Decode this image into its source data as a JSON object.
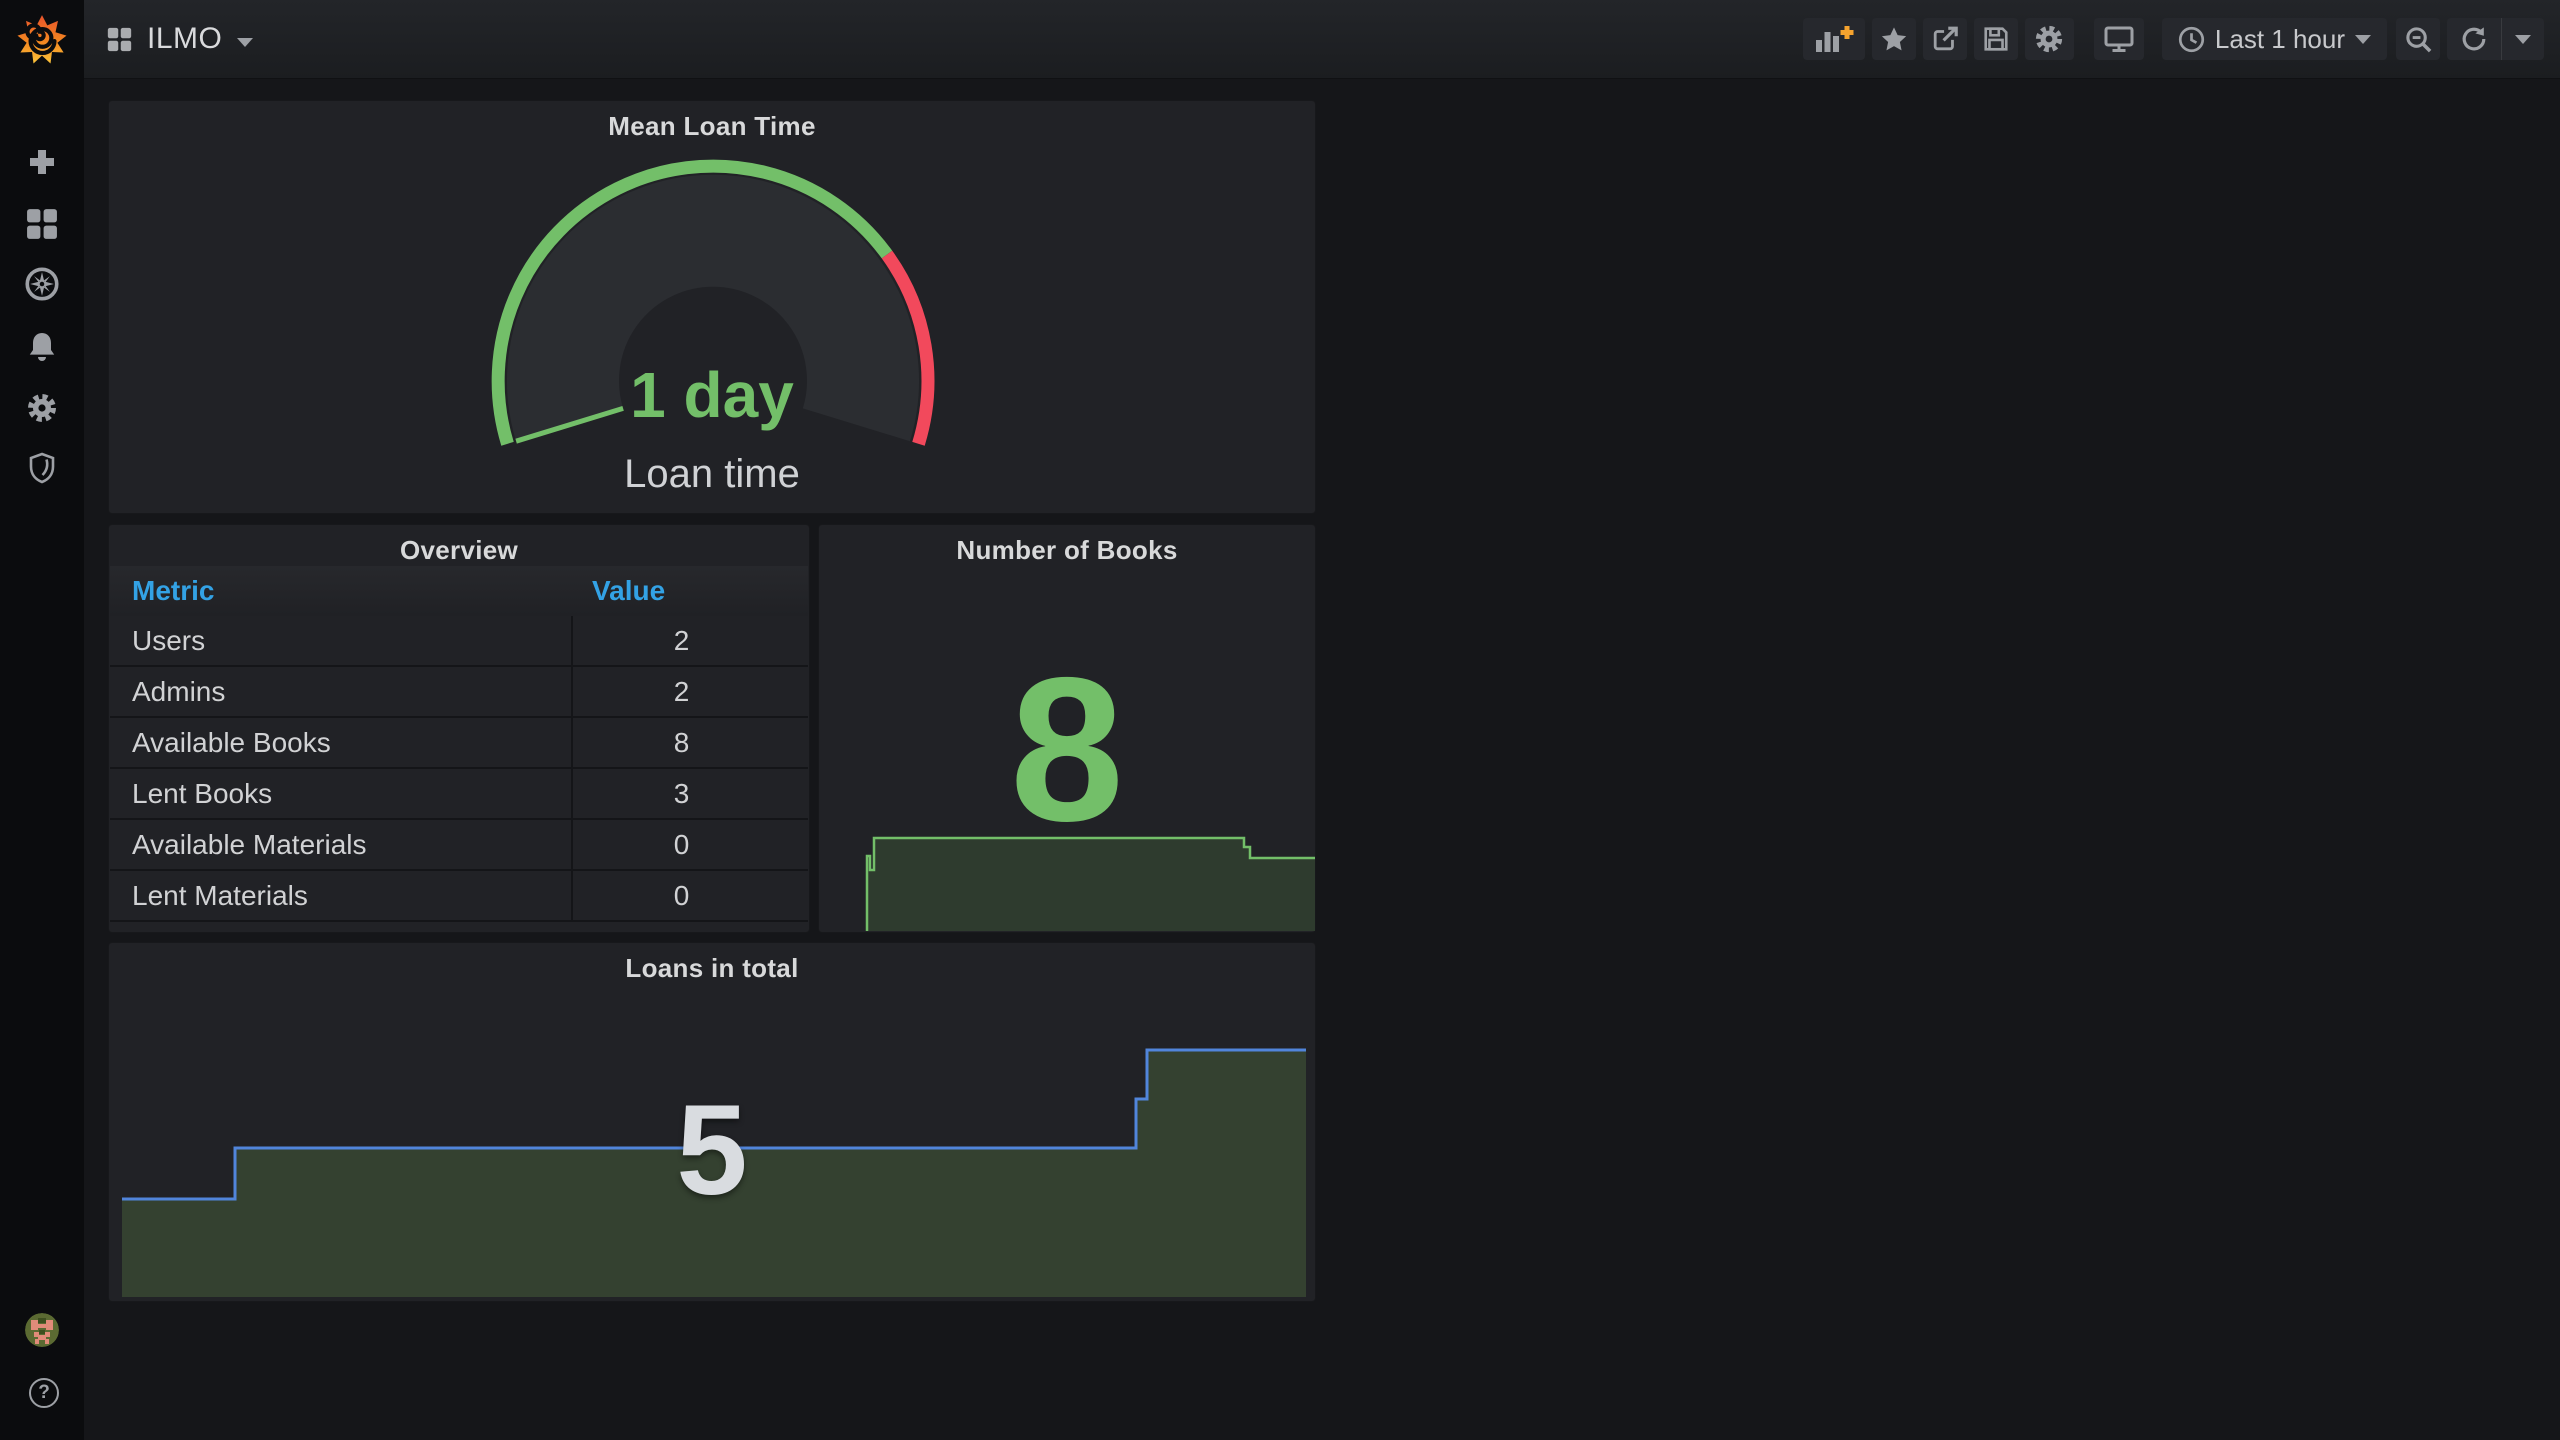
{
  "colors": {
    "page_bg": "#151619",
    "panel_bg": "#212226",
    "sidebar_bg": "#0b0c0e",
    "green": "#73BF69",
    "red": "#F2495C",
    "table_header_blue": "#33A2E5",
    "loans_line_blue": "#5185DB"
  },
  "sidebar": {
    "icons": [
      "grafana-logo",
      "create",
      "dashboards",
      "explore",
      "alerting",
      "configuration",
      "server-admin"
    ],
    "help_glyph": "?"
  },
  "navbar": {
    "title": "ILMO",
    "toolbar": {
      "icons": [
        "add-panel",
        "star",
        "share",
        "save",
        "dashboard-settings",
        "tv-mode",
        "time-range",
        "zoom-out",
        "refresh"
      ],
      "time_range_label": "Last 1 hour"
    }
  },
  "panels": {
    "mean_loan_time": {
      "title": "Mean Loan Time",
      "value": "1 day",
      "label": "Loan time",
      "gauge": {
        "green": "#73BF69",
        "red": "#F2495C",
        "body": "#2b2d31"
      }
    },
    "overview": {
      "title": "Overview",
      "columns": [
        "Metric",
        "Value"
      ],
      "rows": [
        [
          "Users",
          "2"
        ],
        [
          "Admins",
          "2"
        ],
        [
          "Available Books",
          "8"
        ],
        [
          "Lent Books",
          "3"
        ],
        [
          "Available Materials",
          "0"
        ],
        [
          "Lent Materials",
          "0"
        ]
      ]
    },
    "number_of_books": {
      "title": "Number of Books",
      "value": "8",
      "spark": {
        "line": "#73BF69",
        "fill": "#2E3B2E",
        "stroke_width": 2.5,
        "baseline": 407,
        "points": [
          [
            48,
            407
          ],
          [
            48,
            332
          ],
          [
            51,
            332
          ],
          [
            51,
            346
          ],
          [
            55,
            346
          ],
          [
            55,
            314
          ],
          [
            425,
            314
          ],
          [
            425,
            323
          ],
          [
            431,
            323
          ],
          [
            431,
            334
          ],
          [
            496,
            334
          ]
        ]
      }
    },
    "loans_in_total": {
      "title": "Loans in total",
      "value": "5",
      "spark": {
        "line": "#5185DB",
        "fill": "#344130",
        "stroke_width": 3,
        "baseline": 354,
        "points": [
          [
            13,
            256
          ],
          [
            126,
            256
          ],
          [
            126,
            205
          ],
          [
            1027,
            205
          ],
          [
            1027,
            156
          ],
          [
            1038,
            156
          ],
          [
            1038,
            107
          ],
          [
            1197,
            107
          ]
        ]
      }
    }
  },
  "chart_data": [
    {
      "type": "gauge",
      "title": "Mean Loan Time",
      "value_text": "1 day",
      "series_label": "Loan time",
      "threshold_split_fraction": 0.75,
      "segment_colors": [
        "#73BF69",
        "#F2495C"
      ],
      "value_at_minimum": true
    },
    {
      "type": "table",
      "title": "Overview",
      "columns": [
        "Metric",
        "Value"
      ],
      "rows": [
        [
          "Users",
          2
        ],
        [
          "Admins",
          2
        ],
        [
          "Available Books",
          8
        ],
        [
          "Lent Books",
          3
        ],
        [
          "Available Materials",
          0
        ],
        [
          "Lent Materials",
          0
        ]
      ]
    },
    {
      "type": "area",
      "title": "Number of Books",
      "current_value": 8,
      "y_estimated": [
        0,
        7.5,
        7,
        8,
        8,
        8,
        8,
        8,
        7.7,
        7.5,
        7.5
      ],
      "legend": false,
      "axes_hidden": true
    },
    {
      "type": "area",
      "title": "Loans in total",
      "current_value": 5,
      "y_estimated": [
        3,
        3,
        4,
        4,
        4,
        4,
        4,
        4.5,
        5,
        5
      ],
      "legend": false,
      "axes_hidden": true
    }
  ]
}
